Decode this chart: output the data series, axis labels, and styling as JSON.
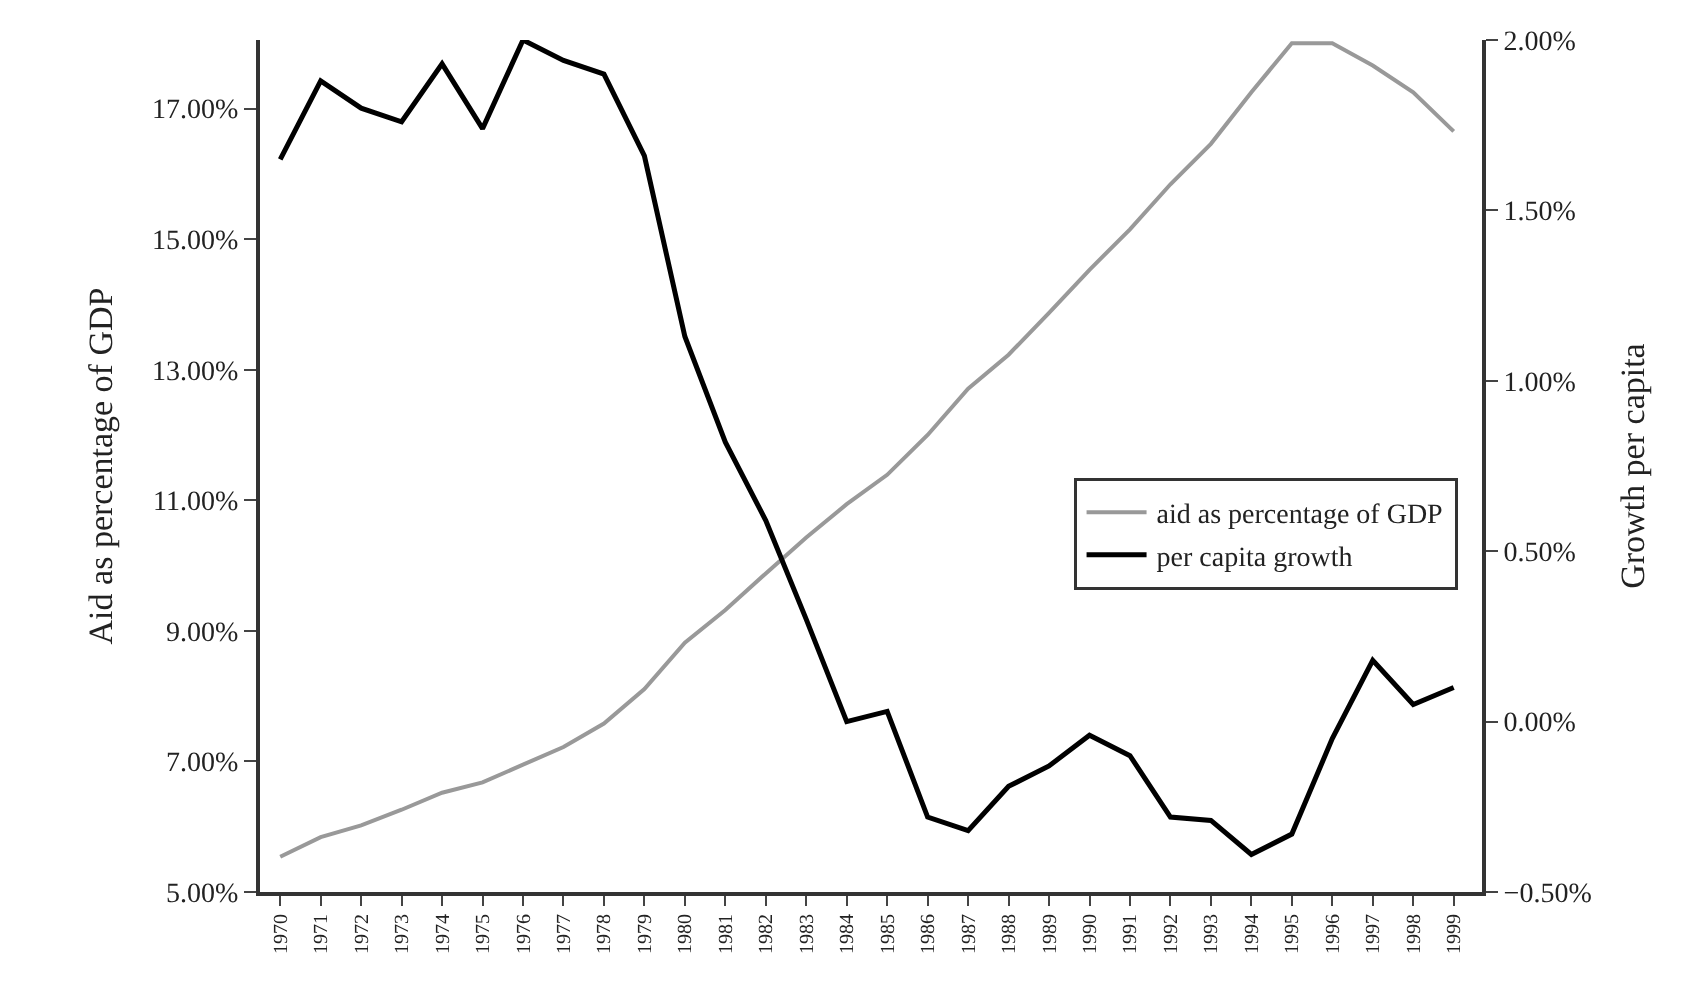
{
  "chart_data": {
    "type": "line",
    "ylabel": "Aid as percentage of GDP",
    "y2label": "Growth per capita",
    "categories": [
      "1970",
      "1971",
      "1972",
      "1973",
      "1974",
      "1975",
      "1976",
      "1977",
      "1978",
      "1979",
      "1980",
      "1981",
      "1982",
      "1983",
      "1984",
      "1985",
      "1986",
      "1987",
      "1988",
      "1989",
      "1990",
      "1991",
      "1992",
      "1993",
      "1994",
      "1995",
      "1996",
      "1997",
      "1998",
      "1999"
    ],
    "series": [
      {
        "name": "aid as percentage of GDP",
        "color": "#999999",
        "values": [
          5.54,
          5.84,
          6.02,
          6.26,
          6.52,
          6.68,
          6.95,
          7.22,
          7.58,
          8.11,
          8.82,
          9.32,
          9.88,
          10.43,
          10.94,
          11.39,
          12.0,
          12.71,
          13.23,
          13.87,
          14.53,
          15.15,
          15.84,
          16.46,
          17.25,
          18.0,
          18.0,
          17.66,
          17.25,
          16.65
        ]
      },
      {
        "name": "per capita growth",
        "color": "#000000",
        "axis": "y2",
        "values": [
          1.65,
          1.88,
          1.8,
          1.76,
          1.93,
          1.74,
          2.0,
          1.94,
          1.9,
          1.66,
          1.13,
          0.82,
          0.59,
          0.3,
          0.0,
          0.03,
          -0.28,
          -0.32,
          -0.19,
          -0.13,
          -0.04,
          -0.1,
          -0.28,
          -0.29,
          -0.39,
          -0.33,
          -0.05,
          0.18,
          0.05,
          0.1
        ]
      }
    ],
    "ylim": [
      5,
      18.05
    ],
    "yticks": [
      {
        "value": 5,
        "label": "5.00%"
      },
      {
        "value": 7,
        "label": "7.00%"
      },
      {
        "value": 9,
        "label": "9.00%"
      },
      {
        "value": 11,
        "label": "11.00%"
      },
      {
        "value": 13,
        "label": "13.00%"
      },
      {
        "value": 15,
        "label": "15.00%"
      },
      {
        "value": 17,
        "label": "17.00%"
      }
    ],
    "y2lim": [
      -0.5,
      2.0
    ],
    "y2ticks": [
      {
        "value": -0.5,
        "label": "−0.50%"
      },
      {
        "value": 0,
        "label": "0.00%"
      },
      {
        "value": 0.5,
        "label": "0.50%"
      },
      {
        "value": 1,
        "label": "1.00%"
      },
      {
        "value": 1.5,
        "label": "1.50%"
      },
      {
        "value": 2,
        "label": "2.00%"
      }
    ],
    "legend": "right",
    "marker": "none",
    "line_style": "solid"
  }
}
